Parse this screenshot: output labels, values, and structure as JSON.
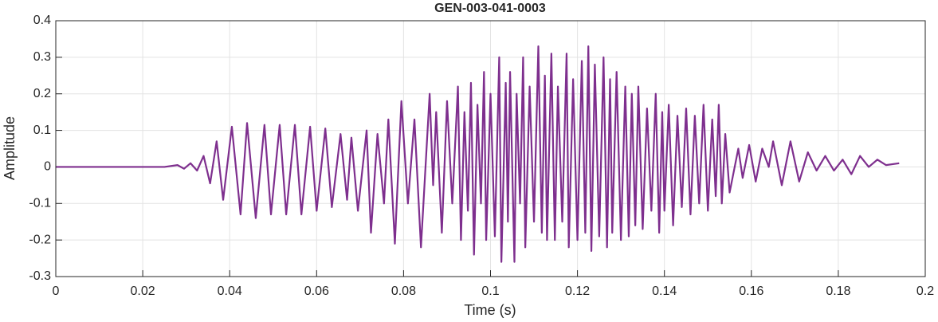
{
  "chart_data": {
    "type": "line",
    "title": "GEN-003-041-0003",
    "xlabel": "Time (s)",
    "ylabel": "Amplitude",
    "color": "#7e2f8e",
    "grid": true,
    "xlim": [
      0,
      0.2
    ],
    "ylim": [
      -0.3,
      0.4
    ],
    "xticks": [
      0,
      0.02,
      0.04,
      0.06,
      0.08,
      0.1,
      0.12,
      0.14,
      0.16,
      0.18,
      0.2
    ],
    "yticks": [
      -0.3,
      -0.2,
      -0.1,
      0,
      0.1,
      0.2,
      0.3,
      0.4
    ],
    "x": [
      0,
      0.01,
      0.02,
      0.025,
      0.028,
      0.0295,
      0.031,
      0.0325,
      0.034,
      0.0355,
      0.037,
      0.0385,
      0.0405,
      0.0425,
      0.044,
      0.046,
      0.048,
      0.0495,
      0.0515,
      0.053,
      0.055,
      0.0565,
      0.0585,
      0.06,
      0.062,
      0.0635,
      0.0655,
      0.067,
      0.068,
      0.0695,
      0.0715,
      0.0725,
      0.074,
      0.0755,
      0.0765,
      0.078,
      0.0795,
      0.081,
      0.0825,
      0.084,
      0.086,
      0.0868,
      0.0875,
      0.0888,
      0.09,
      0.0912,
      0.0925,
      0.0932,
      0.094,
      0.0948,
      0.0955,
      0.0962,
      0.097,
      0.0978,
      0.0985,
      0.099,
      0.1,
      0.101,
      0.102,
      0.1025,
      0.1035,
      0.104,
      0.1045,
      0.1055,
      0.106,
      0.1068,
      0.1075,
      0.108,
      0.109,
      0.11,
      0.111,
      0.1118,
      0.1125,
      0.113,
      0.114,
      0.1148,
      0.1155,
      0.1165,
      0.1175,
      0.118,
      0.119,
      0.12,
      0.121,
      0.1218,
      0.1225,
      0.1232,
      0.124,
      0.125,
      0.126,
      0.1268,
      0.1275,
      0.128,
      0.129,
      0.13,
      0.131,
      0.1318,
      0.1325,
      0.1333,
      0.134,
      0.135,
      0.136,
      0.137,
      0.138,
      0.1388,
      0.1395,
      0.14,
      0.141,
      0.142,
      0.143,
      0.144,
      0.145,
      0.146,
      0.147,
      0.148,
      0.149,
      0.15,
      0.151,
      0.1518,
      0.1525,
      0.1532,
      0.154,
      0.155,
      0.157,
      0.158,
      0.1595,
      0.161,
      0.1625,
      0.164,
      0.165,
      0.167,
      0.169,
      0.171,
      0.173,
      0.175,
      0.177,
      0.179,
      0.181,
      0.183,
      0.185,
      0.187,
      0.189,
      0.191,
      0.194
    ],
    "values": [
      0,
      0,
      0,
      0,
      0.005,
      -0.005,
      0.01,
      -0.01,
      0.03,
      -0.045,
      0.07,
      -0.09,
      0.11,
      -0.13,
      0.12,
      -0.14,
      0.115,
      -0.13,
      0.115,
      -0.13,
      0.115,
      -0.13,
      0.11,
      -0.12,
      0.105,
      -0.11,
      0.09,
      -0.09,
      0.08,
      -0.12,
      0.1,
      -0.18,
      0.09,
      -0.1,
      0.13,
      -0.21,
      0.18,
      -0.1,
      0.13,
      -0.22,
      0.2,
      -0.05,
      0.15,
      -0.18,
      0.18,
      -0.1,
      0.22,
      -0.2,
      0.15,
      -0.12,
      0.23,
      -0.24,
      0.17,
      -0.1,
      0.26,
      -0.2,
      0.2,
      -0.19,
      0.3,
      -0.26,
      0.23,
      -0.15,
      0.26,
      -0.26,
      0.2,
      -0.1,
      0.3,
      -0.22,
      0.22,
      -0.15,
      0.33,
      -0.18,
      0.25,
      -0.2,
      0.31,
      -0.2,
      0.22,
      -0.15,
      0.31,
      -0.22,
      0.24,
      -0.2,
      0.29,
      -0.18,
      0.33,
      -0.23,
      0.28,
      -0.19,
      0.3,
      -0.22,
      0.24,
      -0.18,
      0.26,
      -0.2,
      0.22,
      -0.19,
      0.2,
      -0.16,
      0.22,
      -0.17,
      0.16,
      -0.12,
      0.2,
      -0.18,
      0.15,
      -0.12,
      0.17,
      -0.16,
      0.14,
      -0.11,
      0.16,
      -0.13,
      0.14,
      -0.1,
      0.17,
      -0.12,
      0.13,
      -0.08,
      0.17,
      -0.1,
      0.09,
      -0.07,
      0.05,
      -0.03,
      0.06,
      -0.04,
      0.05,
      0,
      0.07,
      -0.05,
      0.07,
      -0.04,
      0.04,
      -0.01,
      0.03,
      -0.01,
      0.02,
      -0.02,
      0.03,
      0,
      0.02,
      0.005,
      0.01
    ]
  }
}
